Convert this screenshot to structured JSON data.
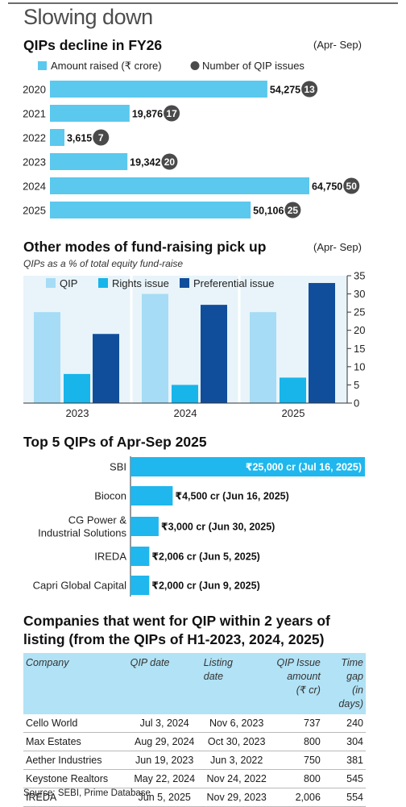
{
  "main_title": "Slowing down",
  "chart_data": [
    {
      "type": "bar",
      "orientation": "horizontal",
      "title": "QIPs decline in FY26",
      "period_note": "(Apr- Sep)",
      "legend": {
        "bar": "Amount raised (₹ crore)",
        "dot": "Number of QIP issues"
      },
      "categories": [
        "2020",
        "2021",
        "2022",
        "2023",
        "2024",
        "2025"
      ],
      "series": [
        {
          "name": "Amount raised (₹ crore)",
          "values": [
            54275,
            19876,
            3615,
            19342,
            64750,
            50106
          ],
          "labels": [
            "54,275",
            "19,876",
            "3,615",
            "19,342",
            "64,750",
            "50,106"
          ]
        },
        {
          "name": "Number of QIP issues",
          "values": [
            13,
            17,
            7,
            20,
            50,
            25
          ]
        }
      ],
      "colors": {
        "bar": "#5bc8ee",
        "dot": "#4a4a4a"
      }
    },
    {
      "type": "bar",
      "title": "Other modes of fund-raising pick up",
      "period_note": "(Apr- Sep)",
      "subtitle": "QIPs as a % of total equity fund-raise",
      "categories": [
        "2023",
        "2024",
        "2025"
      ],
      "ylim": [
        0,
        35
      ],
      "yticks": [
        0,
        5,
        10,
        15,
        20,
        25,
        30,
        35
      ],
      "y_axis_side": "right",
      "legend_position": "top-left",
      "series": [
        {
          "name": "QIP",
          "values": [
            25,
            30,
            25
          ],
          "color": "#a6dcf5"
        },
        {
          "name": "Rights issue",
          "values": [
            8,
            5,
            7
          ],
          "color": "#17b5ea"
        },
        {
          "name": "Preferential issue",
          "values": [
            19,
            27,
            33
          ],
          "color": "#104e9c"
        }
      ]
    },
    {
      "type": "bar",
      "orientation": "horizontal",
      "title": "Top 5 QIPs of Apr-Sep 2025",
      "categories": [
        "SBI",
        "Biocon",
        "CG Power & Industrial Solutions",
        "IREDA",
        "Capri Global Capital"
      ],
      "category_lines": [
        [
          "SBI"
        ],
        [
          "Biocon"
        ],
        [
          "CG Power &",
          "Industrial Solutions"
        ],
        [
          "IREDA"
        ],
        [
          "Capri Global Capital"
        ]
      ],
      "values": [
        25000,
        4500,
        3000,
        2006,
        2000
      ],
      "labels": [
        "₹25,000 cr (Jul 16, 2025)",
        "₹4,500 cr (Jun 16, 2025)",
        "₹3,000 cr (Jun 30, 2025)",
        "₹2,006 cr (Jun 5, 2025)",
        "₹2,000 cr (Jun 9, 2025)"
      ],
      "colors": {
        "bar": "#1fb7ed"
      }
    }
  ],
  "table": {
    "title": "Companies that went for QIP within 2 years of listing (from the QIPs of H1-2023, 2024, 2025)",
    "title_lines": [
      "Companies that went for QIP within 2 years of",
      "listing (from the QIPs of H1-2023, 2024, 2025)"
    ],
    "headers": [
      [
        "Company"
      ],
      [
        "QIP date"
      ],
      [
        "Listing",
        "date"
      ],
      [
        "QIP Issue",
        "amount",
        "(₹ cr)"
      ],
      [
        "Time",
        "gap",
        "(in days)"
      ]
    ],
    "rows": [
      [
        "Cello World",
        "Jul 3, 2024",
        "Nov 6, 2023",
        "737",
        "240"
      ],
      [
        "Max Estates",
        "Aug 29, 2024",
        "Oct 30, 2023",
        "800",
        "304"
      ],
      [
        "Aether Industries",
        "Jun 19, 2023",
        "Jun 3, 2022",
        "750",
        "381"
      ],
      [
        "Keystone Realtors",
        "May 22, 2024",
        "Nov 24, 2022",
        "800",
        "545"
      ],
      [
        "IREDA",
        "Jun 5, 2025",
        "Nov 29, 2023",
        "2,006",
        "554"
      ]
    ]
  },
  "source": "Source: SEBI, Prime Database"
}
